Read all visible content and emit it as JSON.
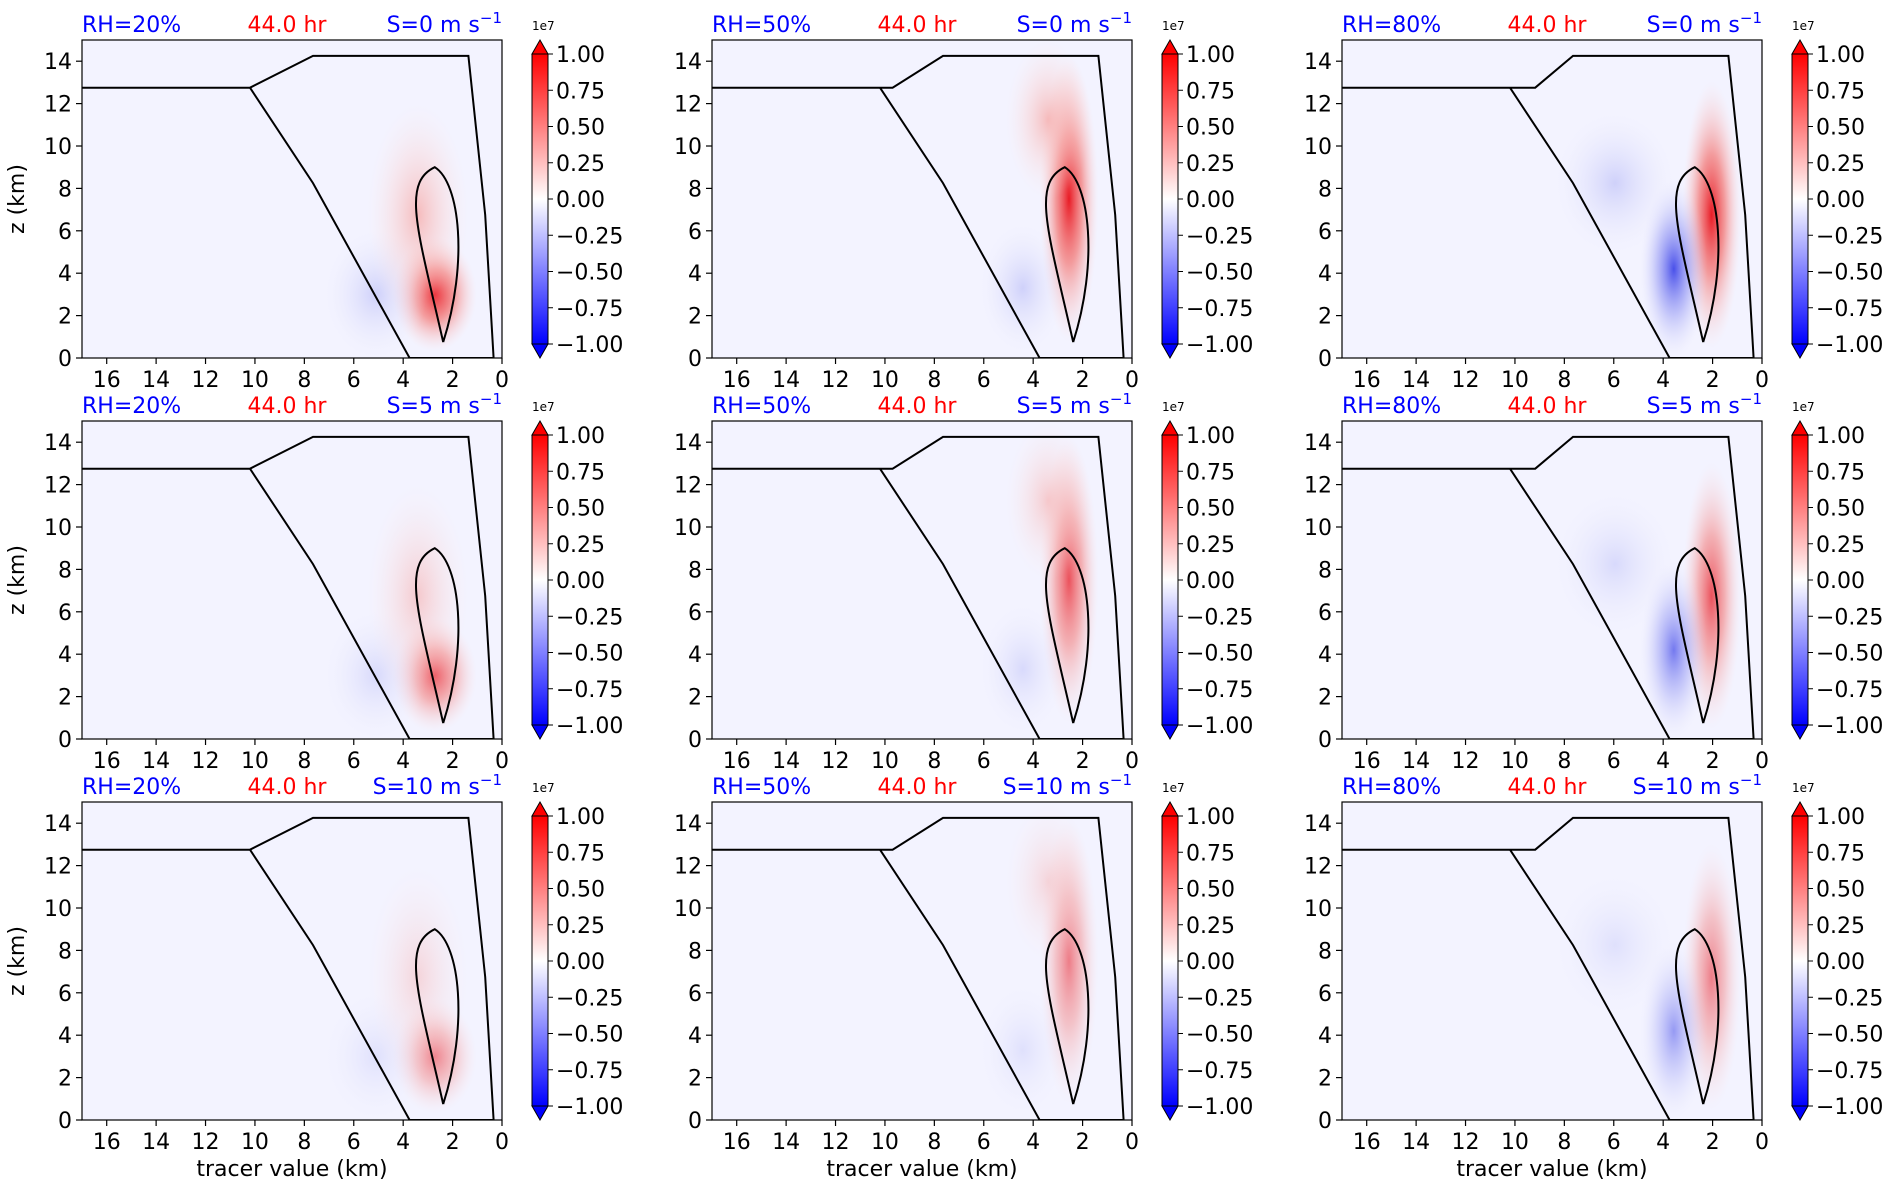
{
  "figure": {
    "colorbar": {
      "scale_label": "1e7",
      "ticks": [
        1.0,
        0.75,
        0.5,
        0.25,
        0.0,
        -0.25,
        -0.5,
        -0.75,
        -1.0
      ],
      "tick_labels": [
        "1.00",
        "0.75",
        "0.50",
        "0.25",
        "0.00",
        "−0.25",
        "−0.50",
        "−0.75",
        "−1.00"
      ],
      "min": -1.0,
      "max": 1.0,
      "extend": "both",
      "colormap": "bwr",
      "colors": {
        "low": "#0000ff",
        "mid": "#ffffff",
        "high": "#ff0000"
      }
    },
    "x_tick_labels": [
      "16",
      "14",
      "12",
      "10",
      "8",
      "6",
      "4",
      "2",
      "0"
    ],
    "y_tick_labels": [
      "0",
      "2",
      "4",
      "6",
      "8",
      "10",
      "12",
      "14"
    ],
    "xlabel": "tracer value (km)",
    "ylabel": "z (km)",
    "title_colors": {
      "rh": "#0000ff",
      "time": "#ff0000",
      "shear": "#0000ff"
    }
  },
  "chart_data": [
    {
      "type": "heatmap",
      "title_rh": "RH=20%",
      "title_time": "44.0 hr",
      "title_shear_prefix": "S=0 m s",
      "title_shear_exp": "−1",
      "rh_percent": 20,
      "shear_ms": 0,
      "time_hr": 44.0,
      "xlim": [
        17,
        0
      ],
      "ylim": [
        0,
        15
      ],
      "xlabel": "",
      "ylabel": "z (km)"
    },
    {
      "type": "heatmap",
      "title_rh": "RH=50%",
      "title_time": "44.0 hr",
      "title_shear_prefix": "S=0 m s",
      "title_shear_exp": "−1",
      "rh_percent": 50,
      "shear_ms": 0,
      "time_hr": 44.0,
      "xlim": [
        17,
        0
      ],
      "ylim": [
        0,
        15
      ],
      "xlabel": "",
      "ylabel": ""
    },
    {
      "type": "heatmap",
      "title_rh": "RH=80%",
      "title_time": "44.0 hr",
      "title_shear_prefix": "S=0 m s",
      "title_shear_exp": "−1",
      "rh_percent": 80,
      "shear_ms": 0,
      "time_hr": 44.0,
      "xlim": [
        17,
        0
      ],
      "ylim": [
        0,
        15
      ],
      "xlabel": "",
      "ylabel": ""
    },
    {
      "type": "heatmap",
      "title_rh": "RH=20%",
      "title_time": "44.0 hr",
      "title_shear_prefix": "S=5 m s",
      "title_shear_exp": "−1",
      "rh_percent": 20,
      "shear_ms": 5,
      "time_hr": 44.0,
      "xlim": [
        17,
        0
      ],
      "ylim": [
        0,
        15
      ],
      "xlabel": "",
      "ylabel": "z (km)"
    },
    {
      "type": "heatmap",
      "title_rh": "RH=50%",
      "title_time": "44.0 hr",
      "title_shear_prefix": "S=5 m s",
      "title_shear_exp": "−1",
      "rh_percent": 50,
      "shear_ms": 5,
      "time_hr": 44.0,
      "xlim": [
        17,
        0
      ],
      "ylim": [
        0,
        15
      ],
      "xlabel": "",
      "ylabel": ""
    },
    {
      "type": "heatmap",
      "title_rh": "RH=80%",
      "title_time": "44.0 hr",
      "title_shear_prefix": "S=5 m s",
      "title_shear_exp": "−1",
      "rh_percent": 80,
      "shear_ms": 5,
      "time_hr": 44.0,
      "xlim": [
        17,
        0
      ],
      "ylim": [
        0,
        15
      ],
      "xlabel": "",
      "ylabel": ""
    },
    {
      "type": "heatmap",
      "title_rh": "RH=20%",
      "title_time": "44.0 hr",
      "title_shear_prefix": "S=10 m s",
      "title_shear_exp": "−1",
      "rh_percent": 20,
      "shear_ms": 10,
      "time_hr": 44.0,
      "xlim": [
        17,
        0
      ],
      "ylim": [
        0,
        15
      ],
      "xlabel": "tracer value (km)",
      "ylabel": "z (km)"
    },
    {
      "type": "heatmap",
      "title_rh": "RH=50%",
      "title_time": "44.0 hr",
      "title_shear_prefix": "S=10 m s",
      "title_shear_exp": "−1",
      "rh_percent": 50,
      "shear_ms": 10,
      "time_hr": 44.0,
      "xlim": [
        17,
        0
      ],
      "ylim": [
        0,
        15
      ],
      "xlabel": "tracer value (km)",
      "ylabel": ""
    },
    {
      "type": "heatmap",
      "title_rh": "RH=80%",
      "title_time": "44.0 hr",
      "title_shear_prefix": "S=10 m s",
      "title_shear_exp": "−1",
      "rh_percent": 80,
      "shear_ms": 10,
      "time_hr": 44.0,
      "xlim": [
        17,
        0
      ],
      "ylim": [
        0,
        15
      ],
      "xlabel": "tracer value (km)",
      "ylabel": ""
    }
  ]
}
